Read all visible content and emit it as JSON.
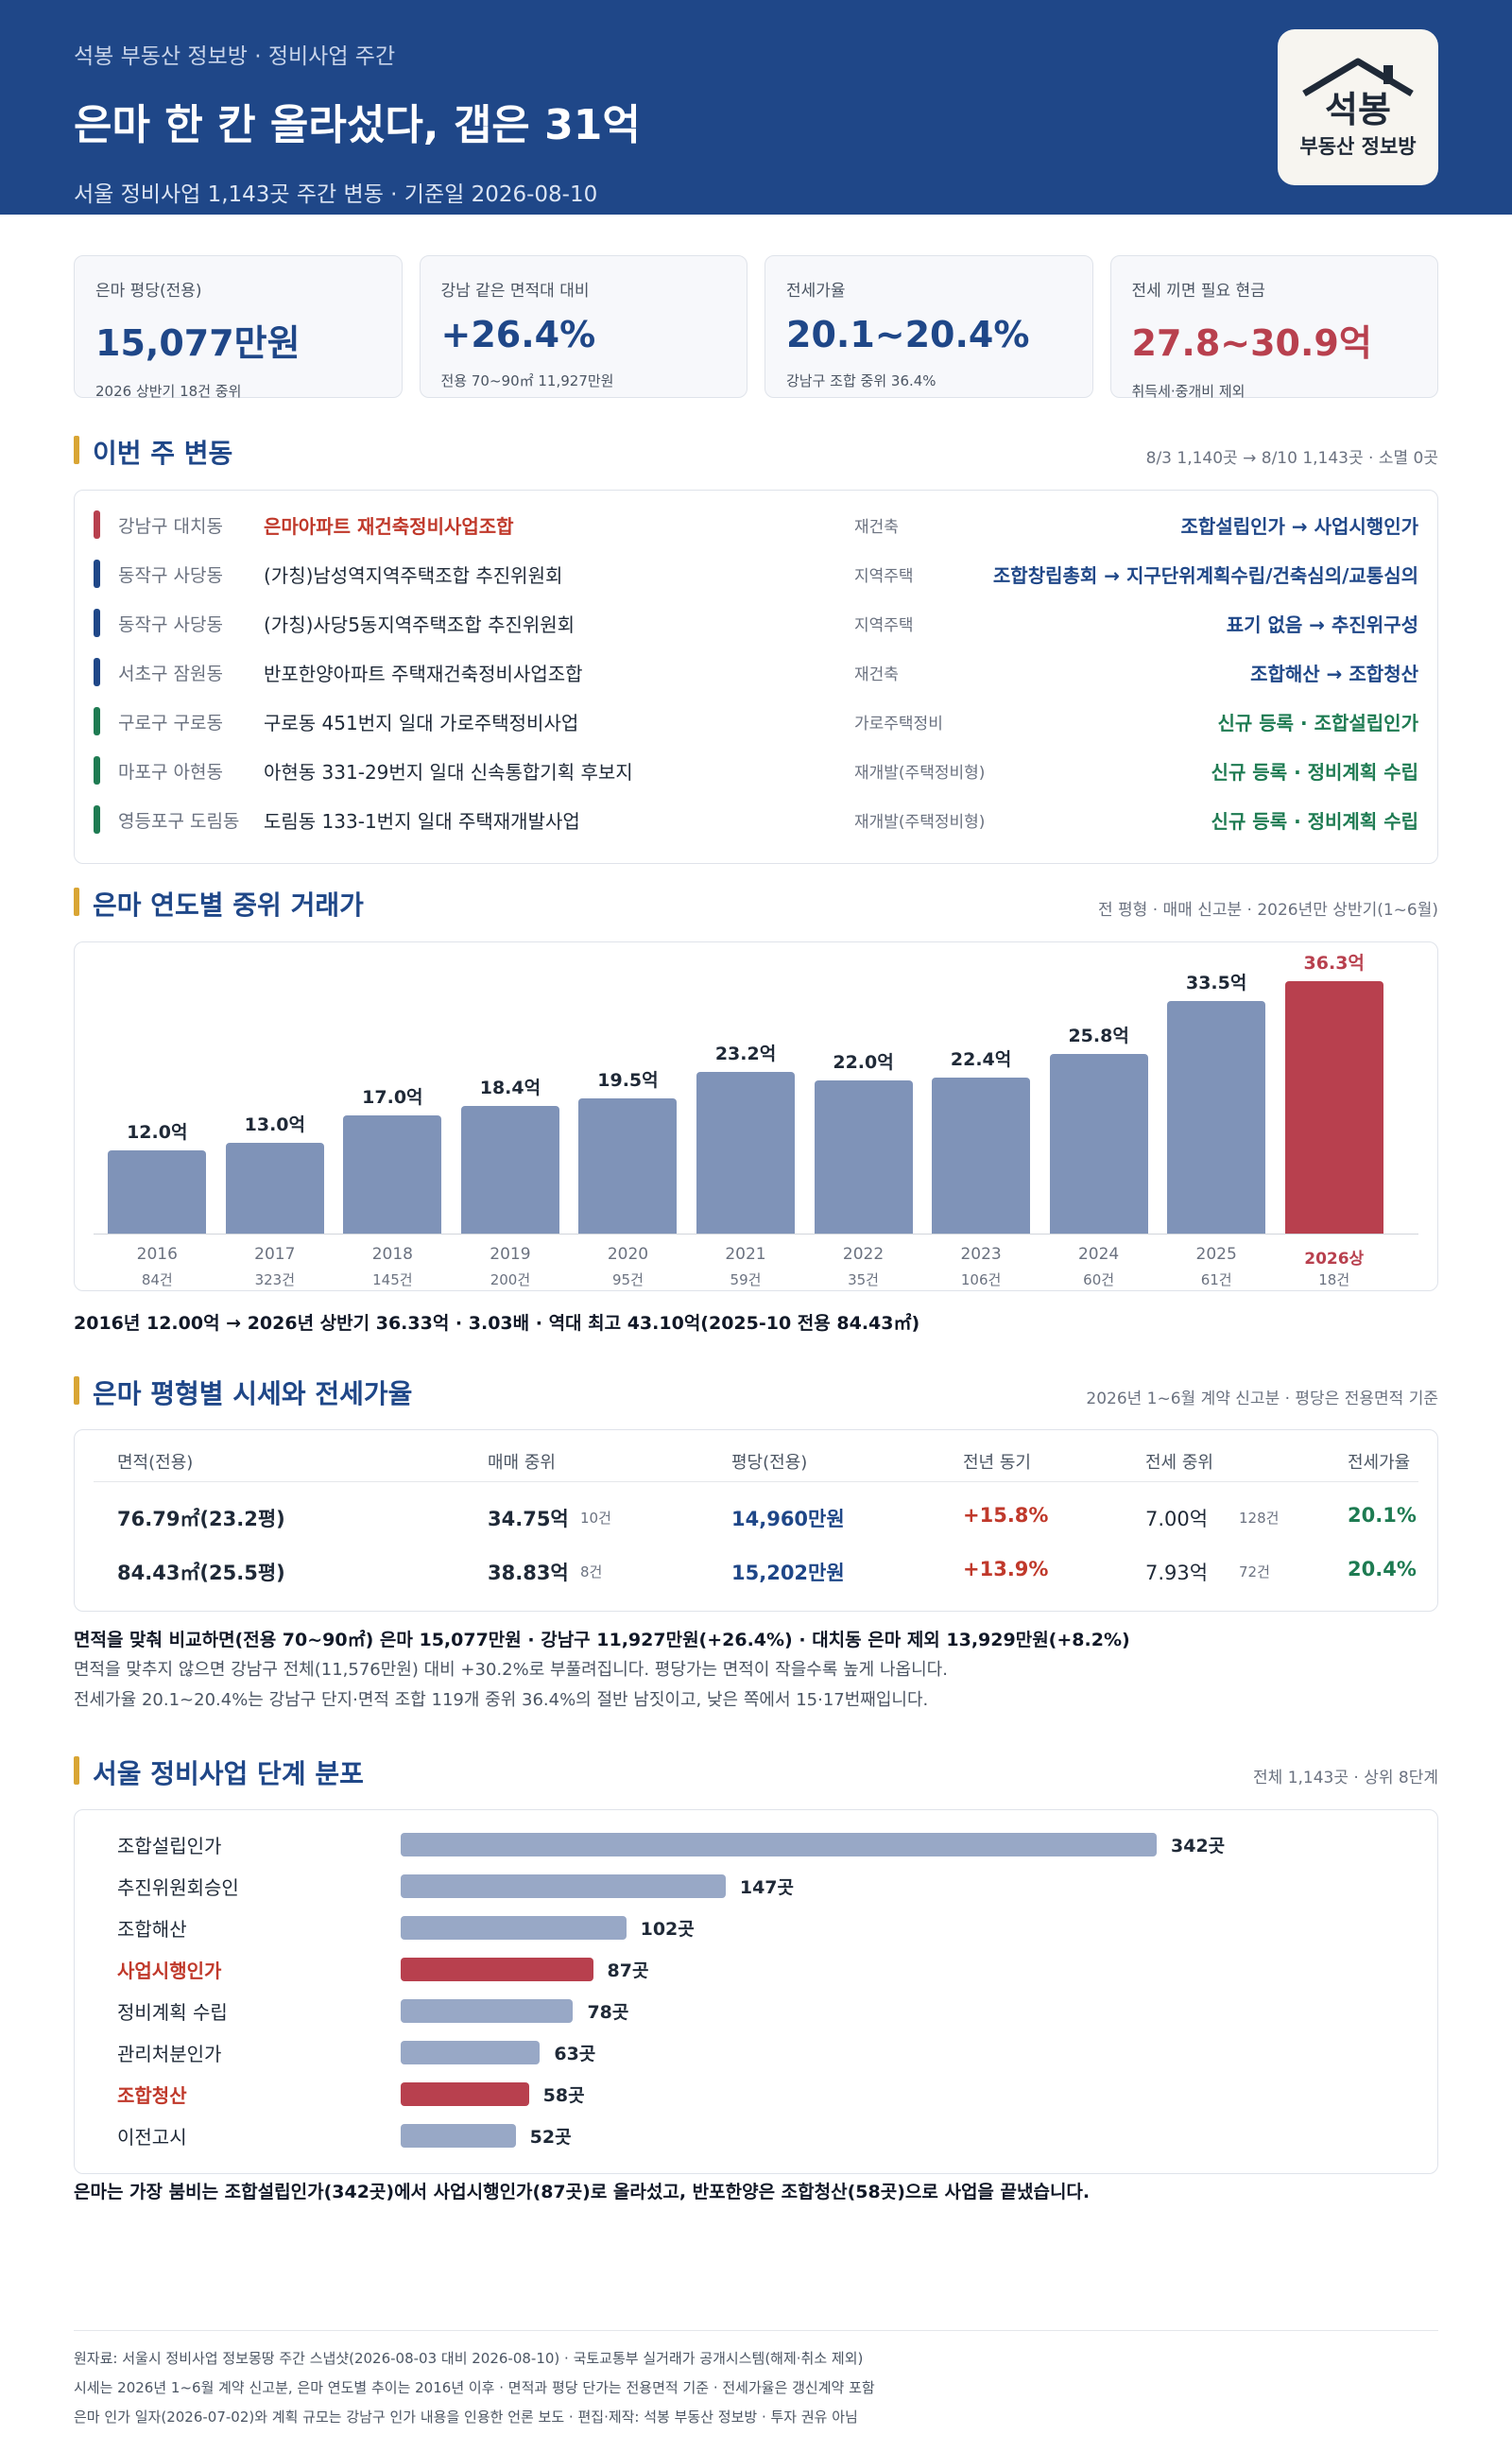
{
  "header": {
    "kicker": "석봉 부동산 정보방 · 정비사업 주간",
    "title": "은마 한 칸 올라섰다, 갭은 31억",
    "sub": "서울 정비사업 1,143곳 주간 변동 · 기준일 2026-08-10",
    "logo_main": "석봉",
    "logo_sub": "부동산 정보방"
  },
  "stats": [
    {
      "label": "은마 평당(전용)",
      "value": "15,077만원",
      "note": "2026 상반기 18건 중위"
    },
    {
      "label": "강남 같은 면적대 대비",
      "value": "+26.4%",
      "note": "전용 70~90㎡ 11,927만원"
    },
    {
      "label": "전세가율",
      "value": "20.1~20.4%",
      "note": "강남구 조합 중위 36.4%"
    },
    {
      "label": "전세 끼면 필요 현금",
      "value": "27.8~30.9억",
      "note": "취득세·중개비 제외"
    }
  ],
  "weekly": {
    "title": "이번 주 변동",
    "meta": "8/3 1,140곳 → 8/10 1,143곳 · 소멸 0곳",
    "rows": [
      {
        "district": "강남구 대치동",
        "name": "은마아파트 재건축정비사업조합",
        "type": "재건축",
        "stage": "조합설립인가 → 사업시행인가",
        "color": "#b8404e",
        "stage_color": "#1f4788",
        "highlight": true
      },
      {
        "district": "동작구 사당동",
        "name": "(가칭)남성역지역주택조합 추진위원회",
        "type": "지역주택",
        "stage": "조합창립총회 → 지구단위계획수립/건축심의/교통심의",
        "color": "#1f4788",
        "stage_color": "#1f4788",
        "highlight": false
      },
      {
        "district": "동작구 사당동",
        "name": "(가칭)사당5동지역주택조합 추진위원회",
        "type": "지역주택",
        "stage": "표기 없음 → 추진위구성",
        "color": "#1f4788",
        "stage_color": "#1f4788",
        "highlight": false
      },
      {
        "district": "서초구 잠원동",
        "name": "반포한양아파트 주택재건축정비사업조합",
        "type": "재건축",
        "stage": "조합해산 → 조합청산",
        "color": "#1f4788",
        "stage_color": "#1f4788",
        "highlight": false
      },
      {
        "district": "구로구 구로동",
        "name": "구로동 451번지 일대 가로주택정비사업",
        "type": "가로주택정비",
        "stage": "신규 등록 · 조합설립인가",
        "color": "#1e7b52",
        "stage_color": "#1e7b52",
        "highlight": false
      },
      {
        "district": "마포구 아현동",
        "name": "아현동 331-29번지 일대 신속통합기획 후보지",
        "type": "재개발(주택정비형)",
        "stage": "신규 등록 · 정비계획 수립",
        "color": "#1e7b52",
        "stage_color": "#1e7b52",
        "highlight": false
      },
      {
        "district": "영등포구 도림동",
        "name": "도림동 133-1번지 일대 주택재개발사업",
        "type": "재개발(주택정비형)",
        "stage": "신규 등록 · 정비계획 수립",
        "color": "#1e7b52",
        "stage_color": "#1e7b52",
        "highlight": false
      }
    ]
  },
  "yearly": {
    "title": "은마 연도별 중위 거래가",
    "meta": "전 평형 · 매매 신고분 · 2026년만 상반기(1~6월)",
    "summary": "2016년 12.00억 → 2026년 상반기 36.33억 · 3.03배 · 역대 최고 43.10억(2025-10 전용 84.43㎡)"
  },
  "chart_data": {
    "type": "bar",
    "categories": [
      "2016",
      "2017",
      "2018",
      "2019",
      "2020",
      "2021",
      "2022",
      "2023",
      "2024",
      "2025",
      "2026상"
    ],
    "values": [
      12.0,
      13.0,
      17.0,
      18.4,
      19.5,
      23.2,
      22.0,
      22.4,
      25.8,
      33.5,
      36.3
    ],
    "value_labels": [
      "12.0억",
      "13.0억",
      "17.0억",
      "18.4억",
      "19.5억",
      "23.2억",
      "22.0억",
      "22.4억",
      "25.8억",
      "33.5억",
      "36.3억"
    ],
    "counts": [
      "84건",
      "323건",
      "145건",
      "200건",
      "95건",
      "59건",
      "35건",
      "106건",
      "60건",
      "61건",
      "18건"
    ],
    "highlight_index": 10,
    "bar_color": "#7f93b8",
    "highlight_color": "#b8404e",
    "ylim": [
      0,
      37
    ]
  },
  "pyeong": {
    "title": "은마 평형별 시세와 전세가율",
    "meta": "2026년 1~6월 계약 신고분 · 평당은 전용면적 기준",
    "headers": [
      "면적(전용)",
      "매매 중위",
      "평당(전용)",
      "전년 동기",
      "전세 중위",
      "전세가율"
    ],
    "rows": [
      {
        "area": "76.79㎡(23.2평)",
        "sale": "34.75억",
        "sale_n": "10건",
        "per": "14,960만원",
        "yoy": "+15.8%",
        "jeonse": "7.00억",
        "jeonse_n": "128건",
        "ratio": "20.1%"
      },
      {
        "area": "84.43㎡(25.5평)",
        "sale": "38.83억",
        "sale_n": "8건",
        "per": "15,202만원",
        "yoy": "+13.9%",
        "jeonse": "7.93억",
        "jeonse_n": "72건",
        "ratio": "20.4%"
      }
    ],
    "p1": "면적을 맞춰 비교하면(전용 70~90㎡) 은마 15,077만원 · 강남구 11,927만원(+26.4%) · 대치동 은마 제외 13,929만원(+8.2%)",
    "p2": "면적을 맞추지 않으면 강남구 전체(11,576만원) 대비 +30.2%로 부풀려집니다. 평당가는 면적이 작을수록 높게 나옵니다.",
    "p3": "전세가율 20.1~20.4%는 강남구 단지·면적 조합 119개 중위 36.4%의 절반 남짓이고, 낮은 쪽에서 15·17번째입니다."
  },
  "stages": {
    "title": "서울 정비사업 단계 분포",
    "meta": "전체 1,143곳 · 상위 8단계",
    "items": [
      {
        "label": "조합설립인가",
        "value": 342,
        "text": "342곳",
        "hl": false
      },
      {
        "label": "추진위원회승인",
        "value": 147,
        "text": "147곳",
        "hl": false
      },
      {
        "label": "조합해산",
        "value": 102,
        "text": "102곳",
        "hl": false
      },
      {
        "label": "사업시행인가",
        "value": 87,
        "text": "87곳",
        "hl": true
      },
      {
        "label": "정비계획 수립",
        "value": 78,
        "text": "78곳",
        "hl": false
      },
      {
        "label": "관리처분인가",
        "value": 63,
        "text": "63곳",
        "hl": false
      },
      {
        "label": "조합청산",
        "value": 58,
        "text": "58곳",
        "hl": true
      },
      {
        "label": "이전고시",
        "value": 52,
        "text": "52곳",
        "hl": false
      }
    ],
    "summary": "은마는 가장 붐비는 조합설립인가(342곳)에서 사업시행인가(87곳)로 올라섰고, 반포한양은 조합청산(58곳)으로 사업을 끝냈습니다."
  },
  "footer": {
    "line1": "원자료: 서울시 정비사업 정보몽땅 주간 스냅샷(2026-08-03 대비 2026-08-10) · 국토교통부 실거래가 공개시스템(해제·취소 제외)",
    "line2": "시세는 2026년 1~6월 계약 신고분, 은마 연도별 추이는 2016년 이후 · 면적과 평당 단가는 전용면적 기준 · 전세가율은 갱신계약 포함",
    "line3": "은마 인가 일자(2026-07-02)와 계획 규모는 강남구 인가 내용을 인용한 언론 보도 · 편집·제작: 석봉 부동산 정보방 · 투자 권유 아님"
  }
}
